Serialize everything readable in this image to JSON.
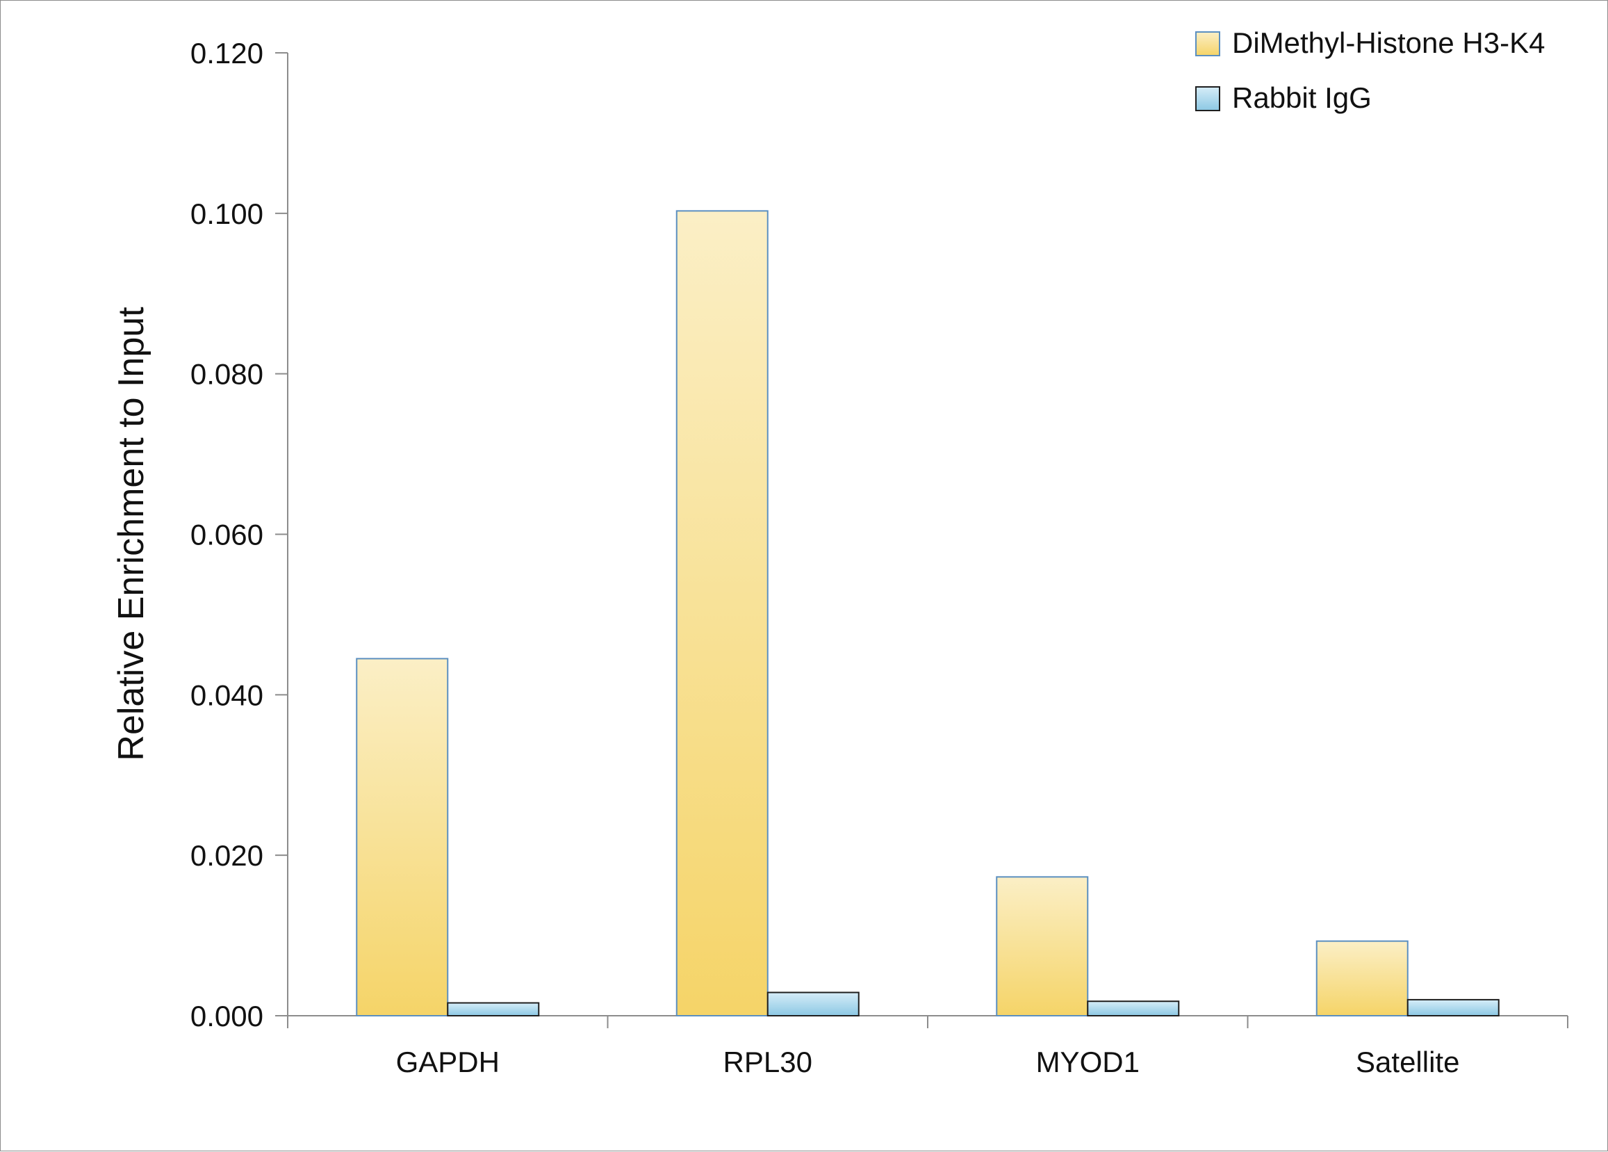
{
  "chart_data": {
    "type": "bar",
    "categories": [
      "GAPDH",
      "RPL30",
      "MYOD1",
      "Satellite"
    ],
    "series": [
      {
        "name": "DiMethyl-Histone H3-K4",
        "values": [
          0.0445,
          0.1003,
          0.0173,
          0.0093
        ],
        "color": "#f5d468"
      },
      {
        "name": "Rabbit IgG",
        "values": [
          0.0016,
          0.0029,
          0.0018,
          0.002
        ],
        "color": "#8cc8e4"
      }
    ],
    "ylabel": "Relative Enrichment to Input",
    "xlabel": "",
    "ylim": [
      0,
      0.12
    ],
    "yticks": [
      "0.000",
      "0.020",
      "0.040",
      "0.060",
      "0.080",
      "0.100",
      "0.120"
    ],
    "grid": false,
    "legend_position": "top-right"
  }
}
